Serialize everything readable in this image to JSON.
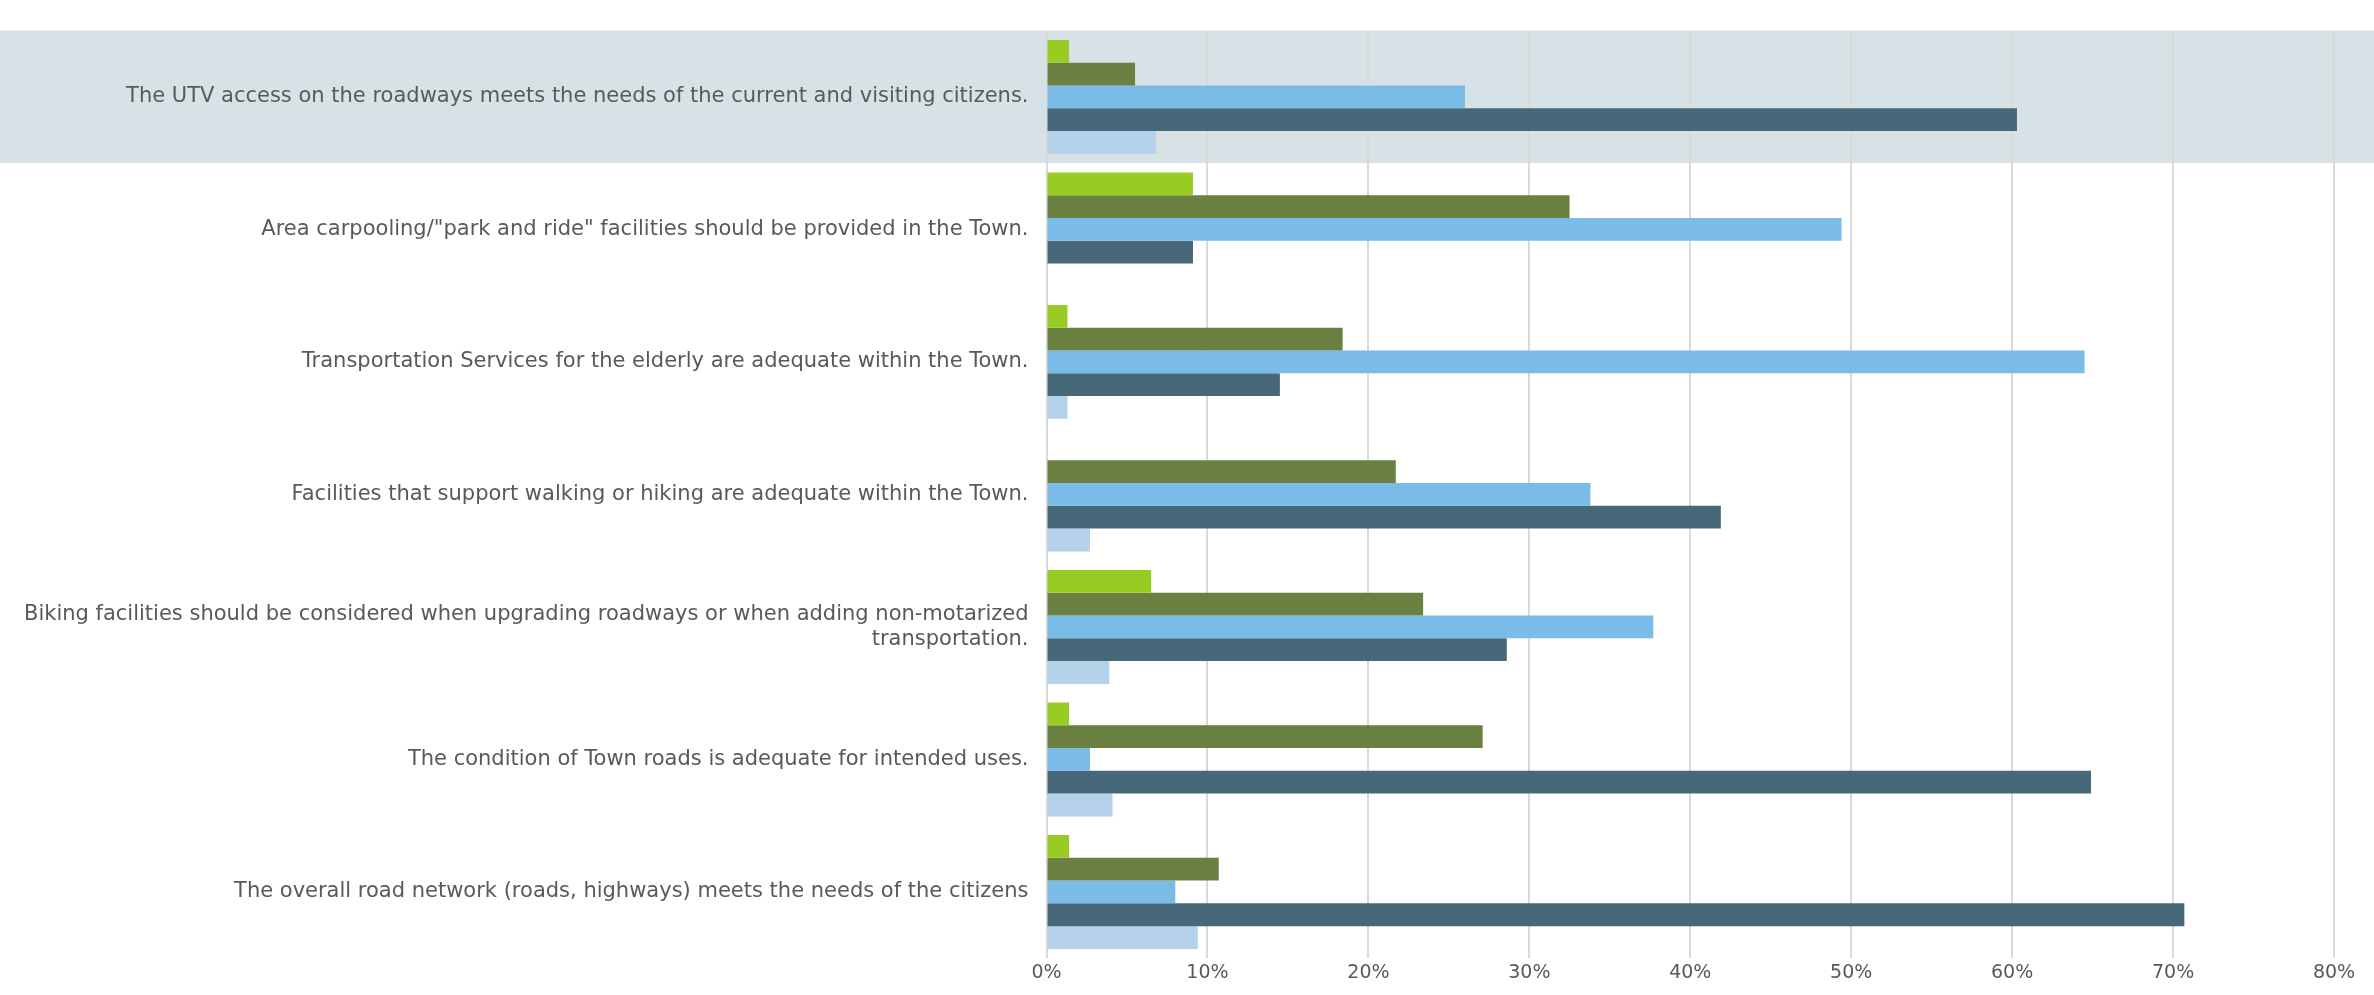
{
  "chart_data": {
    "type": "bar",
    "orientation": "horizontal",
    "categories": [
      "The UTV access on the roadways meets the needs of the current and visiting citizens.",
      "Area carpooling/\"park and ride\" facilities should be provided in the Town.",
      "Transportation Services for the elderly are adequate within the Town.",
      "Facilities that support walking or hiking are adequate within the Town.",
      "Biking facilities should be considered when upgrading roadways or when adding non-motarized transportation.",
      "The condition of Town roads is adequate for intended uses.",
      "The overall road network (roads, highways) meets the needs of the citizens"
    ],
    "series": [
      {
        "color": "#99cc22",
        "values": [
          1.4,
          9.1,
          1.3,
          null,
          6.5,
          1.4,
          1.4
        ]
      },
      {
        "color": "#6a8040",
        "values": [
          5.5,
          32.5,
          18.4,
          21.7,
          23.4,
          27.1,
          10.7
        ]
      },
      {
        "color": "#7abbe8",
        "values": [
          26.0,
          49.4,
          64.5,
          33.8,
          37.7,
          2.7,
          8.0
        ]
      },
      {
        "color": "#466878",
        "values": [
          60.3,
          9.1,
          14.5,
          41.9,
          28.6,
          64.9,
          70.7
        ]
      },
      {
        "color": "#b5d2ea",
        "values": [
          6.8,
          null,
          1.3,
          2.7,
          3.9,
          4.1,
          9.4
        ]
      }
    ],
    "xlim": [
      0,
      80
    ],
    "xticks": [
      {
        "value": 0,
        "label": "0%"
      },
      {
        "value": 10,
        "label": "10%"
      },
      {
        "value": 20,
        "label": "20%"
      },
      {
        "value": 30,
        "label": "30%"
      },
      {
        "value": 40,
        "label": "40%"
      },
      {
        "value": 50,
        "label": "50%"
      },
      {
        "value": 60,
        "label": "60%"
      },
      {
        "value": 70,
        "label": "70%"
      },
      {
        "value": 80,
        "label": "80%"
      }
    ],
    "bands": [
      {
        "axis": "y",
        "from": "The UTV access on the roadways meets the needs of the current and visiting citizens.",
        "to": "The UTV access on the roadways meets the needs of the current and visiting citizens.",
        "color": "#d7e2e7"
      }
    ],
    "grid": "x",
    "legend": false
  }
}
